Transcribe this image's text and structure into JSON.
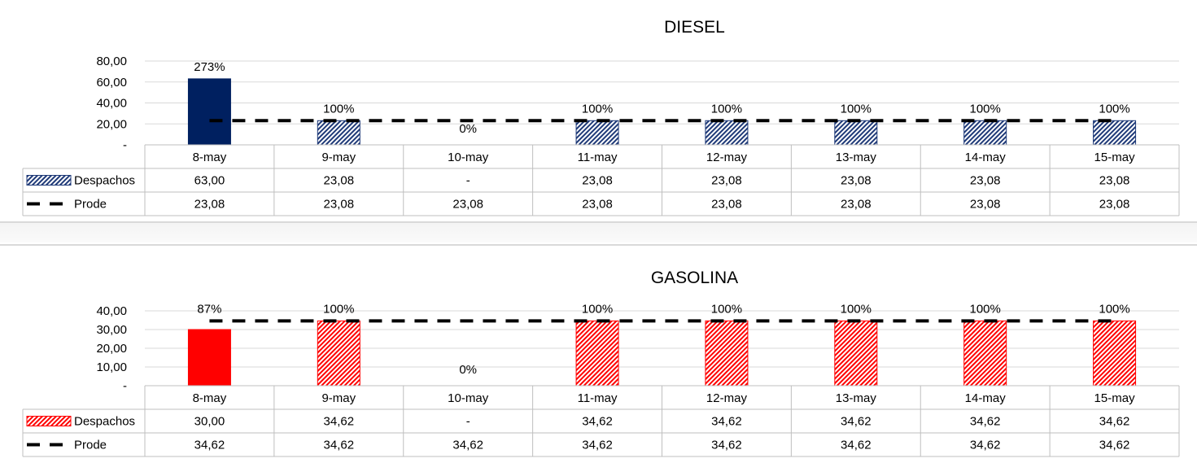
{
  "chart_data": [
    {
      "type": "bar",
      "title": "DIESEL",
      "categories": [
        "8-may",
        "9-may",
        "10-may",
        "11-may",
        "12-may",
        "13-may",
        "14-may",
        "15-may"
      ],
      "ylim": [
        0,
        80
      ],
      "yticks": [
        0,
        20,
        40,
        60,
        80
      ],
      "ytick_labels": [
        "-",
        "20,00",
        "40,00",
        "60,00",
        "80,00"
      ],
      "grid": true,
      "legend_placement": "table-rows",
      "series": [
        {
          "name": "Despachos",
          "kind": "bar",
          "values": [
            63.0,
            23.08,
            null,
            23.08,
            23.08,
            23.08,
            23.08,
            23.08
          ],
          "display_values": [
            "63,00",
            "23,08",
            "-",
            "23,08",
            "23,08",
            "23,08",
            "23,08",
            "23,08"
          ],
          "highlight_color": "#002060",
          "pattern_color": "#1f3a78",
          "highlighted": [
            true,
            false,
            false,
            false,
            false,
            false,
            false,
            false
          ]
        },
        {
          "name": "Prode",
          "kind": "line-dashed",
          "values": [
            23.08,
            23.08,
            23.08,
            23.08,
            23.08,
            23.08,
            23.08,
            23.08
          ],
          "display_values": [
            "23,08",
            "23,08",
            "23,08",
            "23,08",
            "23,08",
            "23,08",
            "23,08",
            "23,08"
          ],
          "color": "#000000"
        }
      ],
      "data_labels": [
        "273%",
        "100%",
        "0%",
        "100%",
        "100%",
        "100%",
        "100%",
        "100%"
      ]
    },
    {
      "type": "bar",
      "title": "GASOLINA",
      "categories": [
        "8-may",
        "9-may",
        "10-may",
        "11-may",
        "12-may",
        "13-may",
        "14-may",
        "15-may"
      ],
      "ylim": [
        0,
        40
      ],
      "yticks": [
        0,
        10,
        20,
        30,
        40
      ],
      "ytick_labels": [
        "-",
        "10,00",
        "20,00",
        "30,00",
        "40,00"
      ],
      "grid": true,
      "legend_placement": "table-rows",
      "series": [
        {
          "name": "Despachos",
          "kind": "bar",
          "values": [
            30.0,
            34.62,
            null,
            34.62,
            34.62,
            34.62,
            34.62,
            34.62
          ],
          "display_values": [
            "30,00",
            "34,62",
            "-",
            "34,62",
            "34,62",
            "34,62",
            "34,62",
            "34,62"
          ],
          "highlight_color": "#ff0000",
          "pattern_color": "#ff0000",
          "highlighted": [
            true,
            false,
            false,
            false,
            false,
            false,
            false,
            false
          ]
        },
        {
          "name": "Prode",
          "kind": "line-dashed",
          "values": [
            34.62,
            34.62,
            34.62,
            34.62,
            34.62,
            34.62,
            34.62,
            34.62
          ],
          "display_values": [
            "34,62",
            "34,62",
            "34,62",
            "34,62",
            "34,62",
            "34,62",
            "34,62",
            "34,62"
          ],
          "color": "#000000"
        }
      ],
      "data_labels": [
        "87%",
        "100%",
        "0%",
        "100%",
        "100%",
        "100%",
        "100%",
        "100%"
      ]
    }
  ]
}
